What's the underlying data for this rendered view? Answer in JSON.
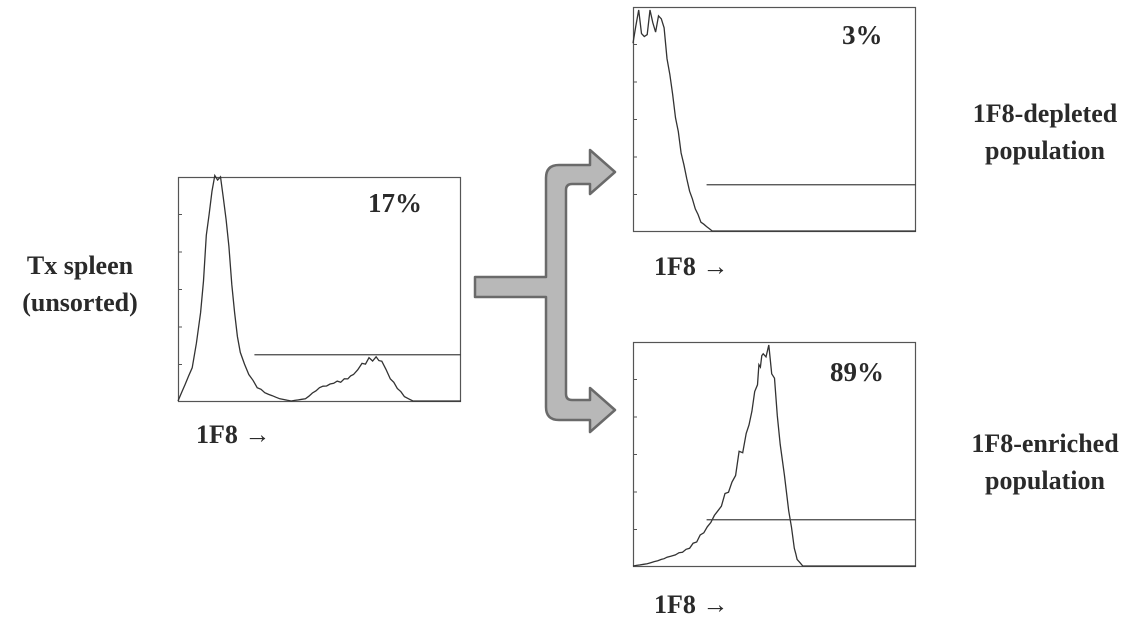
{
  "sample_label": {
    "line1": "Tx spleen",
    "line2": "(unsorted)"
  },
  "depleted_label": {
    "line1": "1F8-depleted",
    "line2": "population"
  },
  "enriched_label": {
    "line1": "1F8-enriched",
    "line2": "population"
  },
  "arrow_color": "#b8b8b8",
  "chart_data": [
    {
      "type": "line",
      "title": "Tx spleen (unsorted)",
      "xlabel": "1F8 →",
      "gate_percent_label": "17%",
      "gate_percent": 17,
      "x": [
        0,
        5,
        8,
        10,
        12,
        14,
        16,
        18,
        20,
        22,
        25,
        28,
        32,
        36,
        40,
        45,
        50,
        55,
        60,
        62,
        65,
        70,
        72,
        75,
        80,
        83,
        86,
        90,
        100
      ],
      "y": [
        0,
        15,
        40,
        75,
        95,
        100,
        92,
        70,
        40,
        22,
        12,
        6,
        3,
        1,
        0,
        1,
        6,
        8,
        10,
        12,
        17,
        20,
        18,
        10,
        2,
        0,
        0,
        0,
        0
      ],
      "ylim": [
        0,
        100
      ],
      "gate_start": 27
    },
    {
      "type": "line",
      "title": "1F8-depleted population",
      "xlabel": "1F8 →",
      "gate_percent_label": "3%",
      "gate_percent": 3,
      "x": [
        0,
        2,
        4,
        6,
        8,
        10,
        12,
        14,
        16,
        18,
        20,
        22,
        24,
        26,
        28,
        30,
        40,
        60,
        100
      ],
      "y": [
        85,
        100,
        88,
        100,
        90,
        96,
        78,
        62,
        45,
        30,
        18,
        10,
        4,
        2,
        0,
        0,
        0,
        0,
        0
      ],
      "ylim": [
        0,
        100
      ],
      "gate_start": 26
    },
    {
      "type": "line",
      "title": "1F8-enriched population",
      "xlabel": "1F8 →",
      "gate_percent_label": "89%",
      "gate_percent": 89,
      "x": [
        0,
        5,
        10,
        12,
        15,
        20,
        25,
        30,
        35,
        40,
        42,
        44,
        45,
        46,
        48,
        50,
        52,
        55,
        57,
        58,
        60,
        62,
        100
      ],
      "y": [
        0,
        1,
        3,
        4,
        5,
        8,
        15,
        25,
        38,
        60,
        70,
        82,
        90,
        96,
        100,
        85,
        55,
        25,
        8,
        3,
        0,
        0,
        0
      ],
      "ylim": [
        0,
        100
      ],
      "gate_start": 26
    }
  ]
}
